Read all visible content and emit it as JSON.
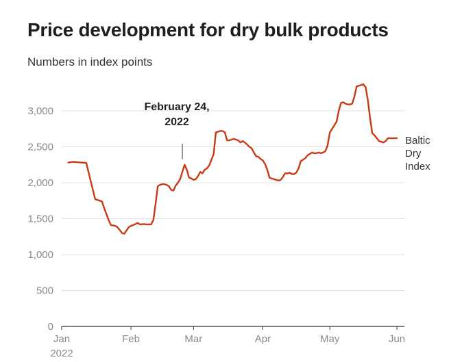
{
  "title": "Price development for dry bulk products",
  "subtitle": "Numbers in index points",
  "chart_data": {
    "type": "line",
    "title": "Price development for dry bulk products",
    "subtitle": "Numbers in index points",
    "xlabel": "",
    "ylabel": "",
    "ylim": [
      0,
      3400
    ],
    "yticks": [
      0,
      500,
      1000,
      1500,
      2000,
      2500,
      3000
    ],
    "ytick_labels": [
      "0",
      "500",
      "1,000",
      "1,500",
      "2,000",
      "2,500",
      "3,000"
    ],
    "xlim": [
      0,
      150
    ],
    "xticks": [
      {
        "x": 0,
        "label": "Jan",
        "sublabel": "2022"
      },
      {
        "x": 31,
        "label": "Feb",
        "sublabel": ""
      },
      {
        "x": 59,
        "label": "Mar",
        "sublabel": ""
      },
      {
        "x": 90,
        "label": "Apr",
        "sublabel": ""
      },
      {
        "x": 120,
        "label": "May",
        "sublabel": ""
      },
      {
        "x": 151,
        "label": "Jun",
        "sublabel": ""
      }
    ],
    "grid": true,
    "annotation": {
      "x": 54,
      "value": 2250,
      "line1": "February 24,",
      "line2": "2022"
    },
    "series": [
      {
        "name": "Baltic Dry Index",
        "label_lines": [
          "Baltic",
          "Dry",
          "Index"
        ],
        "color": "#c93a12",
        "x": [
          3,
          5,
          7,
          9,
          11,
          13,
          15,
          16,
          18,
          19,
          21,
          22,
          24,
          25,
          27,
          28,
          30,
          31,
          32,
          34,
          35,
          37,
          38,
          39,
          40,
          41,
          42,
          43,
          44,
          45,
          46,
          47,
          48,
          49,
          50,
          51,
          52,
          53,
          54,
          55,
          56,
          57,
          58,
          59,
          60,
          61,
          62,
          63,
          64,
          65,
          66,
          68,
          69,
          70,
          71,
          72,
          73,
          74,
          75,
          76,
          77,
          78,
          79,
          80,
          81,
          82,
          83,
          84,
          85,
          86,
          87,
          88,
          89,
          90,
          91,
          92,
          93,
          94,
          95,
          96,
          97,
          98,
          99,
          100,
          101,
          102,
          103,
          104,
          105,
          106,
          107,
          108,
          109,
          110,
          111,
          112,
          113,
          114,
          115,
          116,
          117,
          118,
          119,
          120,
          121,
          122,
          123,
          124,
          125,
          126,
          127,
          128,
          129,
          130,
          131,
          132,
          133,
          134,
          135,
          136,
          137,
          138,
          139,
          140,
          141,
          142,
          143,
          144,
          145,
          146,
          147,
          148,
          149,
          150
        ],
        "values": [
          2280,
          2290,
          2285,
          2280,
          2275,
          2020,
          1770,
          1760,
          1740,
          1650,
          1480,
          1410,
          1400,
          1380,
          1300,
          1290,
          1380,
          1400,
          1410,
          1440,
          1420,
          1425,
          1420,
          1420,
          1420,
          1480,
          1700,
          1950,
          1970,
          1980,
          1980,
          1970,
          1950,
          1900,
          1890,
          1960,
          2000,
          2050,
          2150,
          2250,
          2180,
          2070,
          2060,
          2040,
          2050,
          2090,
          2150,
          2130,
          2180,
          2200,
          2240,
          2400,
          2700,
          2710,
          2720,
          2720,
          2700,
          2590,
          2590,
          2600,
          2610,
          2600,
          2590,
          2560,
          2580,
          2560,
          2530,
          2500,
          2480,
          2420,
          2370,
          2360,
          2330,
          2310,
          2260,
          2180,
          2070,
          2060,
          2050,
          2040,
          2030,
          2040,
          2080,
          2130,
          2130,
          2140,
          2120,
          2120,
          2140,
          2200,
          2300,
          2320,
          2340,
          2380,
          2400,
          2420,
          2410,
          2410,
          2420,
          2410,
          2420,
          2440,
          2520,
          2700,
          2750,
          2800,
          2850,
          3000,
          3110,
          3120,
          3100,
          3090,
          3090,
          3100,
          3200,
          3340,
          3350,
          3360,
          3370,
          3330,
          3150,
          2900,
          2690,
          2660,
          2620,
          2580,
          2570,
          2560,
          2580,
          2620,
          2620,
          2620,
          2620,
          2620
        ]
      }
    ]
  }
}
